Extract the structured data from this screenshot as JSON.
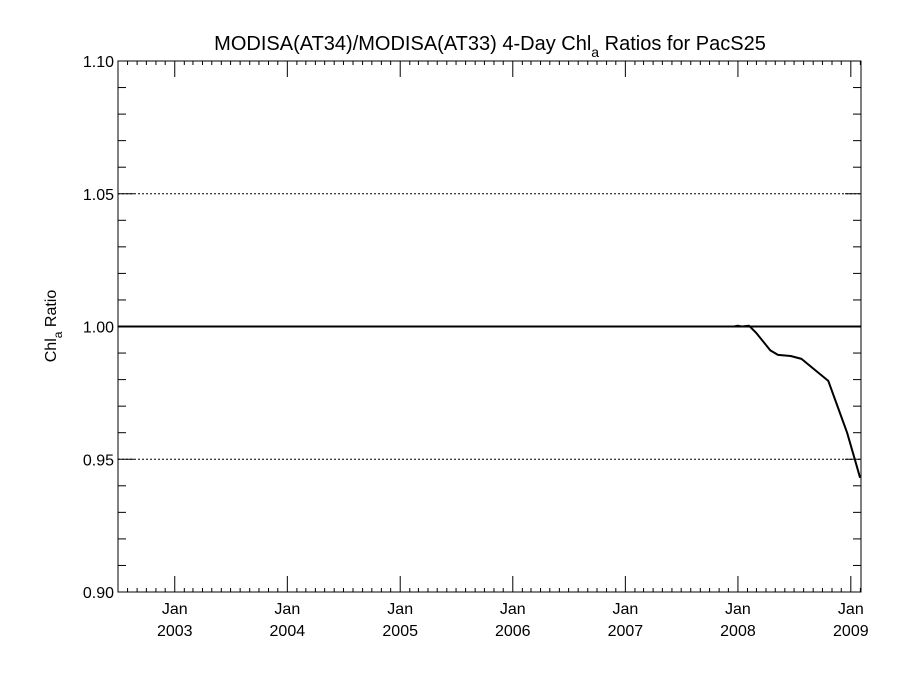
{
  "chart_data": {
    "type": "line",
    "title": {
      "main": "MODISA(AT34)/MODISA(AT33) 4-Day Chl",
      "sub": "a",
      "rest": " Ratios for PacS25"
    },
    "ylabel": {
      "main": "Chl",
      "sub": "a",
      "rest": " Ratio"
    },
    "xlabel": "",
    "y_range": [
      0.9,
      1.1
    ],
    "y_ticks": [
      {
        "value": 0.9,
        "label": "0.90"
      },
      {
        "value": 0.95,
        "label": "0.95"
      },
      {
        "value": 1.0,
        "label": "1.00"
      },
      {
        "value": 1.05,
        "label": "1.05"
      },
      {
        "value": 1.1,
        "label": "1.10"
      }
    ],
    "y_minor_step": 0.01,
    "x_range": [
      "2002-07-01",
      "2009-02-03"
    ],
    "x_ticks": [
      {
        "date": "2003-01-01",
        "line1": "Jan",
        "line2": "2003"
      },
      {
        "date": "2004-01-01",
        "line1": "Jan",
        "line2": "2004"
      },
      {
        "date": "2005-01-01",
        "line1": "Jan",
        "line2": "2005"
      },
      {
        "date": "2006-01-01",
        "line1": "Jan",
        "line2": "2006"
      },
      {
        "date": "2007-01-01",
        "line1": "Jan",
        "line2": "2007"
      },
      {
        "date": "2008-01-01",
        "line1": "Jan",
        "line2": "2008"
      },
      {
        "date": "2009-01-01",
        "line1": "Jan",
        "line2": "2009"
      }
    ],
    "reference_line": 1.0,
    "dotted_grid_y": [
      0.95,
      1.05
    ],
    "series": [
      {
        "color": "#000000",
        "points": [
          {
            "x": "2002-07-04",
            "y": 1.0
          },
          {
            "x": "2007-12-20",
            "y": 1.0
          },
          {
            "x": "2007-12-31",
            "y": 1.0003
          },
          {
            "x": "2008-01-14",
            "y": 1.0
          },
          {
            "x": "2008-02-06",
            "y": 1.0003
          },
          {
            "x": "2008-03-01",
            "y": 0.9975
          },
          {
            "x": "2008-04-15",
            "y": 0.991
          },
          {
            "x": "2008-05-10",
            "y": 0.9893
          },
          {
            "x": "2008-06-20",
            "y": 0.9889
          },
          {
            "x": "2008-07-25",
            "y": 0.9878
          },
          {
            "x": "2008-09-03",
            "y": 0.984
          },
          {
            "x": "2008-10-20",
            "y": 0.9795
          },
          {
            "x": "2008-11-25",
            "y": 0.968
          },
          {
            "x": "2008-12-20",
            "y": 0.96
          },
          {
            "x": "2009-01-14",
            "y": 0.95
          },
          {
            "x": "2009-01-31",
            "y": 0.943
          }
        ]
      }
    ]
  }
}
